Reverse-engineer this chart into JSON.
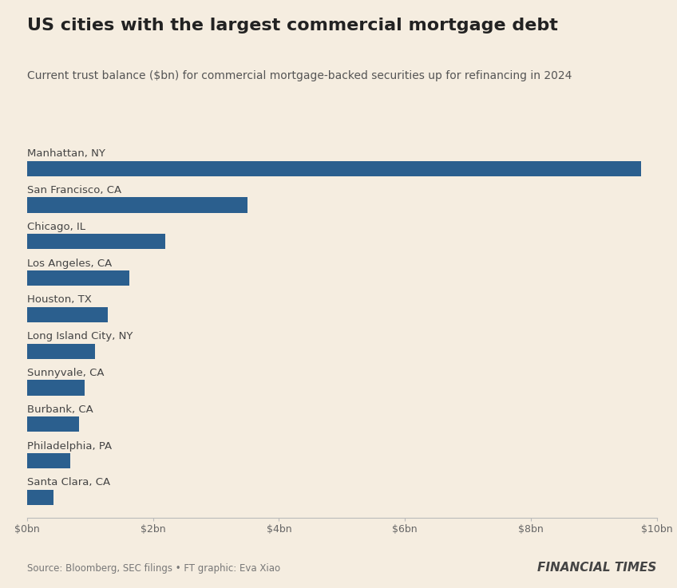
{
  "title": "US cities with the largest commercial mortgage debt",
  "subtitle": "Current trust balance ($bn) for commercial mortgage-backed securities up for refinancing in 2024",
  "categories": [
    "Santa Clara, CA",
    "Philadelphia, PA",
    "Burbank, CA",
    "Sunnyvale, CA",
    "Long Island City, NY",
    "Houston, TX",
    "Los Angeles, CA",
    "Chicago, IL",
    "San Francisco, CA",
    "Manhattan, NY"
  ],
  "values": [
    0.42,
    0.68,
    0.82,
    0.92,
    1.08,
    1.28,
    1.62,
    2.2,
    3.5,
    9.75
  ],
  "bar_color": "#2b5f8e",
  "background_color": "#f5ede0",
  "xlim": [
    0,
    10
  ],
  "xticks": [
    0,
    2,
    4,
    6,
    8,
    10
  ],
  "xtick_labels": [
    "$0bn",
    "$2bn",
    "$4bn",
    "$6bn",
    "$8bn",
    "$10bn"
  ],
  "source_text": "Source: Bloomberg, SEC filings • FT graphic: Eva Xiao",
  "brand_text": "FINANCIAL TIMES",
  "title_fontsize": 16,
  "subtitle_fontsize": 10,
  "label_fontsize": 9.5,
  "tick_fontsize": 9,
  "source_fontsize": 8.5,
  "brand_fontsize": 11
}
